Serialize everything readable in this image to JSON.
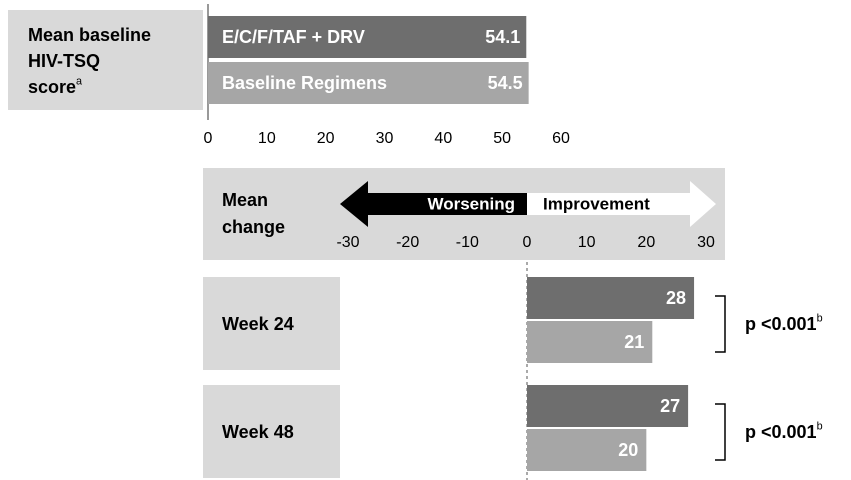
{
  "chart_data": [
    {
      "type": "bar",
      "orientation": "horizontal",
      "label_lines": [
        "Mean baseline",
        "HIV-TSQ",
        "score"
      ],
      "label_note": "a",
      "categories": [
        "E/C/F/TAF + DRV",
        "Baseline Regimens"
      ],
      "values": [
        54.1,
        54.5
      ],
      "colors": [
        "#6e6e6e",
        "#a6a6a6"
      ],
      "xlim": [
        0,
        60
      ],
      "xticks": [
        0,
        10,
        20,
        30,
        40,
        50,
        60
      ]
    },
    {
      "type": "bar",
      "orientation": "horizontal",
      "label_lines": [
        "Mean",
        "change"
      ],
      "direction_labels": [
        "Worsening",
        "Improvement"
      ],
      "categories": [
        "Week 24",
        "Week 48"
      ],
      "series": [
        {
          "color": "#6e6e6e",
          "values": [
            28,
            27
          ]
        },
        {
          "color": "#a6a6a6",
          "values": [
            21,
            20
          ]
        }
      ],
      "annotations": [
        {
          "text": "p <0.001",
          "note": "b"
        },
        {
          "text": "p <0.001",
          "note": "b"
        }
      ],
      "xlim": [
        -30,
        30
      ],
      "xticks": [
        -30,
        -20,
        -10,
        0,
        10,
        20,
        30
      ]
    }
  ]
}
